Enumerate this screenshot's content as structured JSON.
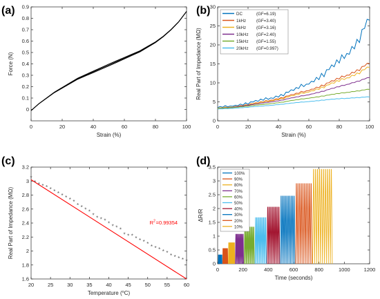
{
  "chart_data": [
    {
      "panel": "(a)",
      "type": "line",
      "xlabel": "Strain (%)",
      "ylabel": "Force (N)",
      "xlim": [
        0,
        100
      ],
      "ylim": [
        -0.1,
        0.9
      ],
      "xticks": [
        0,
        20,
        40,
        60,
        80,
        100
      ],
      "yticks": [
        0,
        0.1,
        0.2,
        0.3,
        0.4,
        0.5,
        0.6,
        0.7,
        0.8,
        0.9
      ],
      "grid": false,
      "series": [
        {
          "color": "#000000",
          "x": [
            0,
            5,
            10,
            15,
            20,
            25,
            30,
            35,
            40,
            45,
            50,
            55,
            60,
            65,
            70,
            75,
            80,
            85,
            90,
            95,
            100
          ],
          "y": [
            -0.01,
            0.05,
            0.1,
            0.15,
            0.19,
            0.23,
            0.27,
            0.3,
            0.33,
            0.36,
            0.39,
            0.42,
            0.45,
            0.48,
            0.51,
            0.55,
            0.59,
            0.64,
            0.7,
            0.77,
            0.86
          ]
        }
      ]
    },
    {
      "panel": "(b)",
      "type": "line",
      "xlabel": "Strain (%)",
      "ylabel": "Real Part of Impedance (MΩ)",
      "xlim": [
        0,
        100
      ],
      "ylim": [
        0,
        30
      ],
      "xticks": [
        0,
        20,
        40,
        60,
        80,
        100
      ],
      "yticks": [
        0,
        5,
        10,
        15,
        20,
        25,
        30
      ],
      "grid": false,
      "legend": "top-left",
      "series": [
        {
          "name": "DC",
          "gf": "(GF=6.19)",
          "color": "#0072BD",
          "x": [
            0,
            10,
            20,
            30,
            40,
            50,
            60,
            70,
            80,
            90,
            100
          ],
          "y": [
            3.5,
            4.0,
            4.7,
            5.5,
            6.6,
            8.0,
            10.0,
            12.5,
            15.5,
            20.0,
            26.5
          ]
        },
        {
          "name": "1kHz",
          "gf": "(GF=3.40)",
          "color": "#D95319",
          "x": [
            0,
            10,
            20,
            30,
            40,
            50,
            60,
            70,
            80,
            90,
            100
          ],
          "y": [
            3.3,
            3.7,
            4.3,
            5.0,
            5.9,
            6.9,
            8.1,
            9.5,
            11.1,
            13.0,
            15.1
          ]
        },
        {
          "name": "5kHz",
          "gf": "(GF=3.16)",
          "color": "#EDB120",
          "x": [
            0,
            10,
            20,
            30,
            40,
            50,
            60,
            70,
            80,
            90,
            100
          ],
          "y": [
            3.3,
            3.7,
            4.2,
            4.9,
            5.7,
            6.6,
            7.7,
            9.0,
            10.5,
            12.2,
            14.1
          ]
        },
        {
          "name": "10kHz",
          "gf": "(GF=2.40)",
          "color": "#7E2F8E",
          "x": [
            0,
            10,
            20,
            30,
            40,
            50,
            60,
            70,
            80,
            90,
            100
          ],
          "y": [
            3.2,
            3.6,
            4.1,
            4.7,
            5.3,
            6.1,
            6.9,
            7.9,
            9.0,
            10.2,
            11.4
          ]
        },
        {
          "name": "15kHz",
          "gf": "(GF=1.55)",
          "color": "#77AC30",
          "x": [
            0,
            10,
            20,
            30,
            40,
            50,
            60,
            70,
            80,
            90,
            100
          ],
          "y": [
            3.2,
            3.5,
            3.9,
            4.3,
            4.8,
            5.4,
            6.0,
            6.6,
            7.2,
            7.8,
            8.3
          ]
        },
        {
          "name": "20kHz",
          "gf": "(GF=0.997)",
          "color": "#4DBEEE",
          "x": [
            0,
            10,
            20,
            30,
            40,
            50,
            60,
            70,
            80,
            90,
            100
          ],
          "y": [
            3.1,
            3.3,
            3.6,
            3.9,
            4.3,
            4.7,
            5.1,
            5.5,
            5.8,
            6.1,
            6.3
          ]
        }
      ]
    },
    {
      "panel": "(c)",
      "type": "scatter",
      "xlabel": "Temperature (",
      "xlabel_sup": "o",
      "xlabel_end": "C)",
      "ylabel": "Real Part of Impedance (MΩ)",
      "xlim": [
        20,
        60
      ],
      "ylim": [
        1.6,
        3.2
      ],
      "xticks": [
        20,
        25,
        30,
        35,
        40,
        45,
        50,
        55,
        60
      ],
      "yticks": [
        1.6,
        1.8,
        2,
        2.2,
        2.4,
        2.6,
        2.8,
        3,
        3.2
      ],
      "grid": false,
      "annotation_prefix": "R",
      "annotation_sup": "2",
      "annotation_value": "=0.99354",
      "annotation_color": "#FF0000",
      "fit": {
        "color": "#FF0000",
        "x": [
          20,
          60
        ],
        "y": [
          3.02,
          1.6
        ]
      },
      "points": {
        "color": "#555555",
        "x": [
          20,
          21,
          22,
          23,
          24,
          25,
          26,
          27,
          28,
          29,
          30,
          31,
          32,
          33,
          34,
          35,
          36,
          37,
          38,
          39,
          40,
          41,
          42,
          43,
          44,
          45,
          46,
          47,
          48,
          49,
          50,
          51,
          52,
          53,
          54,
          55,
          56,
          57,
          58,
          59,
          60
        ],
        "y": [
          3.05,
          2.99,
          2.96,
          2.94,
          2.92,
          2.89,
          2.86,
          2.83,
          2.8,
          2.77,
          2.74,
          2.71,
          2.66,
          2.63,
          2.6,
          2.57,
          2.52,
          2.48,
          2.46,
          2.44,
          2.4,
          2.36,
          2.34,
          2.31,
          2.24,
          2.22,
          2.22,
          2.19,
          2.16,
          2.14,
          2.11,
          2.07,
          2.05,
          2.03,
          2.0,
          1.98,
          1.94,
          1.92,
          1.9,
          1.88,
          1.86
        ]
      }
    },
    {
      "panel": "(d)",
      "type": "line",
      "xlabel": "Time (seconds)",
      "ylabel": "ΔR/R",
      "xlim": [
        0,
        1200
      ],
      "ylim": [
        0,
        3.5
      ],
      "xticks": [
        0,
        200,
        400,
        600,
        800,
        1000,
        1200
      ],
      "yticks": [
        0,
        0.5,
        1,
        1.5,
        2,
        2.5,
        3,
        3.5
      ],
      "grid": false,
      "legend": "top-left",
      "series": [
        {
          "name": "100%",
          "color": "#0072BD",
          "t_start": 5,
          "t_end": 35,
          "peak": 0.32
        },
        {
          "name": "90%",
          "color": "#D95319",
          "t_start": 40,
          "t_end": 80,
          "peak": 0.55
        },
        {
          "name": "80%",
          "color": "#EDB120",
          "t_start": 85,
          "t_end": 135,
          "peak": 0.76
        },
        {
          "name": "70%",
          "color": "#7E2F8E",
          "t_start": 140,
          "t_end": 205,
          "peak": 1.07
        },
        {
          "name": "60%",
          "color": "#77AC30",
          "t_start": 210,
          "t_end": 290,
          "peak": 1.33
        },
        {
          "name": "50%",
          "color": "#4DBEEE",
          "t_start": 295,
          "t_end": 385,
          "peak": 1.67
        },
        {
          "name": "40%",
          "color": "#A2142F",
          "t_start": 390,
          "t_end": 490,
          "peak": 2.05
        },
        {
          "name": "30%",
          "color": "#0072BD",
          "t_start": 495,
          "t_end": 610,
          "peak": 2.45
        },
        {
          "name": "20%",
          "color": "#D95319",
          "t_start": 615,
          "t_end": 745,
          "peak": 2.9
        },
        {
          "name": "10%",
          "color": "#EDB120",
          "t_start": 750,
          "t_end": 905,
          "peak": 3.42
        }
      ]
    }
  ]
}
